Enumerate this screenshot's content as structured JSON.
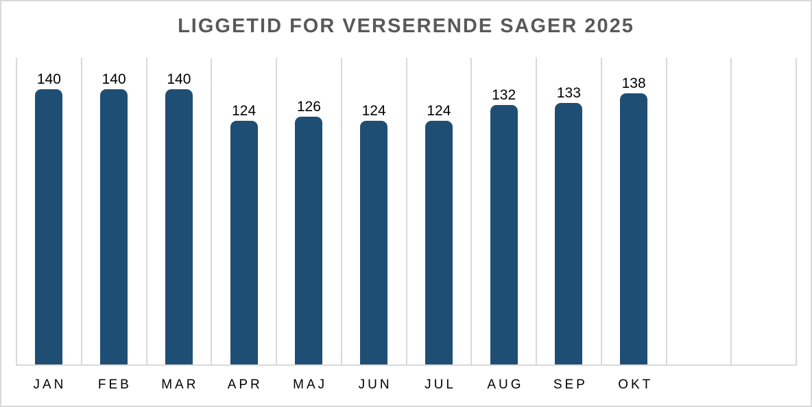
{
  "chart_data": {
    "type": "bar",
    "title": "LIGGETID FOR VERSERENDE SAGER 2025",
    "categories": [
      "JAN",
      "FEB",
      "MAR",
      "APR",
      "MAJ",
      "JUN",
      "JUL",
      "AUG",
      "SEP",
      "OKT"
    ],
    "values": [
      140,
      140,
      140,
      124,
      126,
      124,
      124,
      132,
      133,
      138
    ],
    "xlabel": "",
    "ylabel": "",
    "ylim": [
      0,
      156
    ],
    "y_axis_labels_visible": false,
    "gridlines": "vertical-only",
    "plot_columns": 12,
    "legend": "none",
    "colors": {
      "bar": "#1f4e74",
      "title": "#595959",
      "data_label": "#000000",
      "axis_label": "#000000",
      "gridline": "#d9d9d9",
      "border": "#d9d9d9",
      "background": "#ffffff"
    }
  }
}
